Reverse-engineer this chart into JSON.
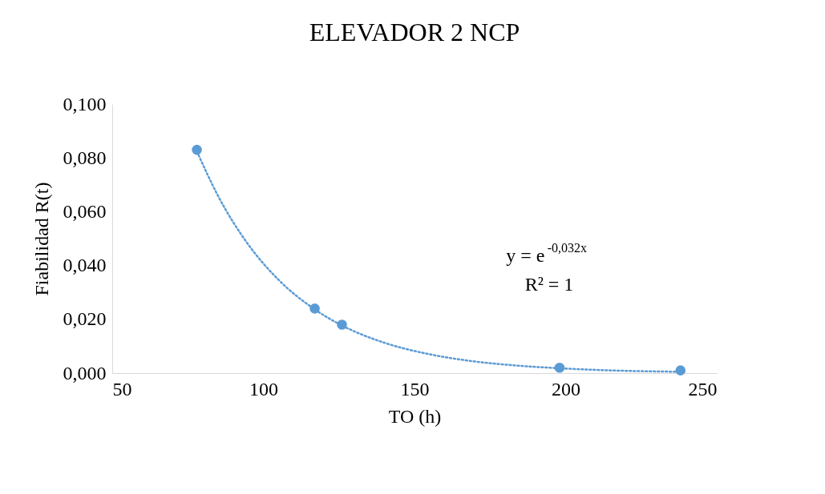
{
  "chart_data": {
    "type": "scatter",
    "title": "ELEVADOR 2 NCP",
    "xlabel": "TO (h)",
    "ylabel": "Fiabilidad R(t)",
    "xlim": [
      50,
      250
    ],
    "xticks": [
      50,
      100,
      150,
      200,
      250
    ],
    "ylim": [
      0,
      0.1
    ],
    "yticks": [
      {
        "value": 0,
        "label": "0,000"
      },
      {
        "value": 0.02,
        "label": "0,020"
      },
      {
        "value": 0.04,
        "label": "0,040"
      },
      {
        "value": 0.06,
        "label": "0,060"
      },
      {
        "value": 0.08,
        "label": "0,080"
      },
      {
        "value": 0.1,
        "label": "0,100"
      }
    ],
    "grid": false,
    "series": [
      {
        "color": "#5b9bd5",
        "marker": "circle",
        "x": [
          78,
          117,
          126,
          198,
          238
        ],
        "values": [
          0.083,
          0.024,
          0.018,
          0.002,
          0.001
        ]
      },
      {
        "type": "line",
        "color": "#5b9bd5",
        "line_style": "dotted",
        "x": [
          78,
          85,
          95,
          105,
          117,
          126,
          140,
          155,
          170,
          185,
          198,
          215,
          238
        ],
        "values": [
          0.0824,
          0.0659,
          0.0478,
          0.0347,
          0.0237,
          0.0177,
          0.0113,
          0.007,
          0.0043,
          0.0027,
          0.0018,
          0.001,
          0.0005
        ]
      }
    ],
    "annotations": [
      "y = e$^{-0,032x}$",
      "R² = 1"
    ]
  }
}
